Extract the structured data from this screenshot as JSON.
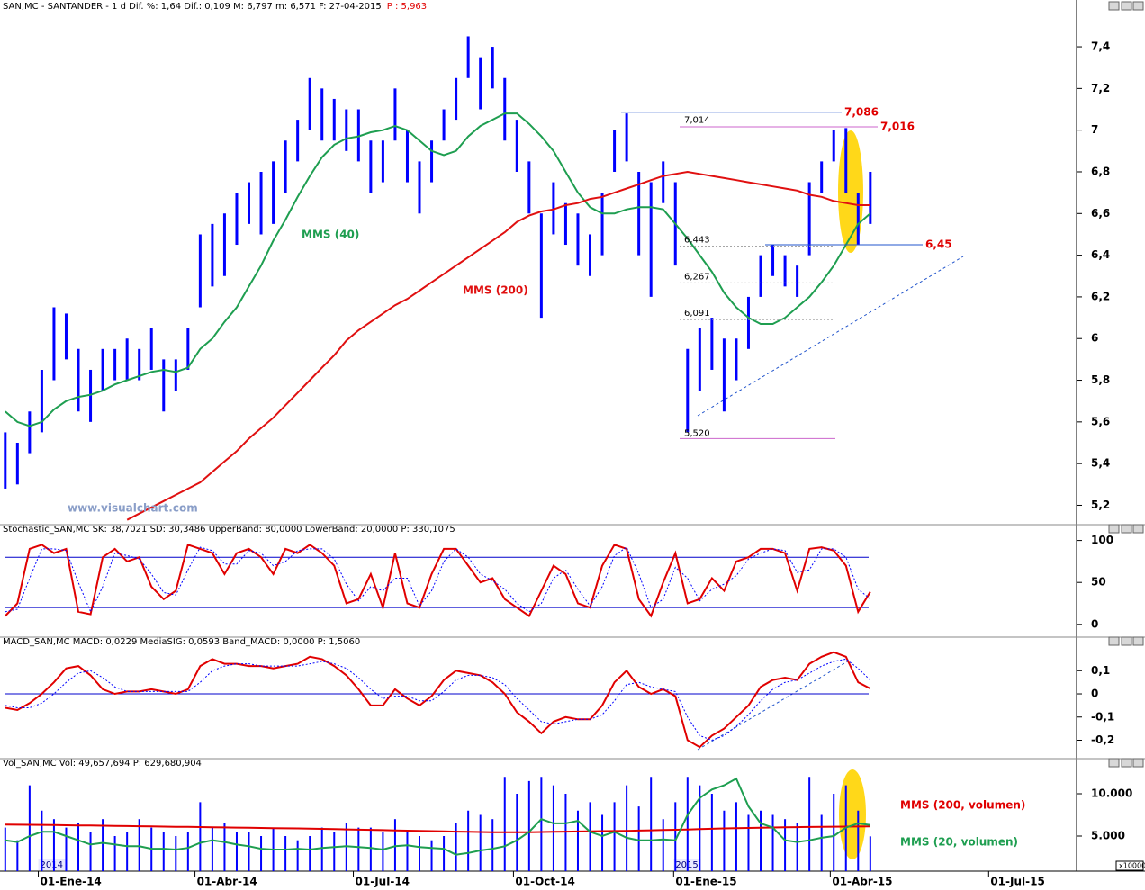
{
  "chart_data": [
    {
      "type": "ohlc",
      "title": "SAN,MC - SANTANDER -  1 d Dif. %: 1,64 Dif.: 0,109 M: 6,797 m: 6,571 F: 27-04-2015",
      "title_tail": "P : 5,963",
      "watermark": "www.visualchart.com",
      "x": [
        "2013-12-13",
        "2013-12-20",
        "2013-12-27",
        "2014-01-03",
        "2014-01-10",
        "2014-01-17",
        "2014-01-24",
        "2014-01-31",
        "2014-02-07",
        "2014-02-14",
        "2014-02-21",
        "2014-02-28",
        "2014-03-07",
        "2014-03-14",
        "2014-03-21",
        "2014-03-28",
        "2014-04-04",
        "2014-04-11",
        "2014-04-18",
        "2014-04-25",
        "2014-05-02",
        "2014-05-09",
        "2014-05-16",
        "2014-05-23",
        "2014-05-30",
        "2014-06-06",
        "2014-06-13",
        "2014-06-20",
        "2014-06-27",
        "2014-07-04",
        "2014-07-11",
        "2014-07-18",
        "2014-07-25",
        "2014-08-01",
        "2014-08-08",
        "2014-08-15",
        "2014-08-22",
        "2014-08-29",
        "2014-09-05",
        "2014-09-12",
        "2014-09-19",
        "2014-09-26",
        "2014-10-03",
        "2014-10-10",
        "2014-10-17",
        "2014-10-24",
        "2014-10-31",
        "2014-11-07",
        "2014-11-14",
        "2014-11-21",
        "2014-11-28",
        "2014-12-05",
        "2014-12-12",
        "2014-12-19",
        "2014-12-26",
        "2015-01-02",
        "2015-01-09",
        "2015-01-16",
        "2015-01-23",
        "2015-01-30",
        "2015-02-06",
        "2015-02-13",
        "2015-02-20",
        "2015-02-27",
        "2015-03-06",
        "2015-03-13",
        "2015-03-20",
        "2015-03-27",
        "2015-04-03",
        "2015-04-10",
        "2015-04-17",
        "2015-04-24"
      ],
      "xlim": [
        "2013-12-10",
        "2015-08-20"
      ],
      "xticks": [
        {
          "value": "2014-01-01",
          "label": "01-Ene-14"
        },
        {
          "value": "2014-04-01",
          "label": "01-Abr-14"
        },
        {
          "value": "2014-07-01",
          "label": "01-Jul-14"
        },
        {
          "value": "2014-10-01",
          "label": "01-Oct-14"
        },
        {
          "value": "2015-01-01",
          "label": "01-Ene-15"
        },
        {
          "value": "2015-04-01",
          "label": "01-Abr-15"
        },
        {
          "value": "2015-07-01",
          "label": "01-Jul-15"
        }
      ],
      "year_labels": [
        {
          "value": "2014-01-01",
          "label": "2014"
        },
        {
          "value": "2015-01-01",
          "label": "2015"
        }
      ],
      "color": "#0000ff",
      "high": [
        5.55,
        5.5,
        5.65,
        5.85,
        6.15,
        6.12,
        5.95,
        5.85,
        5.95,
        5.95,
        6.0,
        5.95,
        6.05,
        5.9,
        5.9,
        6.05,
        6.5,
        6.55,
        6.6,
        6.7,
        6.75,
        6.8,
        6.85,
        6.95,
        7.05,
        7.25,
        7.2,
        7.15,
        7.1,
        7.1,
        6.95,
        6.95,
        7.2,
        7.0,
        6.85,
        6.95,
        7.1,
        7.25,
        7.45,
        7.35,
        7.4,
        7.25,
        7.05,
        6.85,
        6.6,
        6.75,
        6.65,
        6.6,
        6.5,
        6.7,
        7.0,
        7.08,
        6.8,
        6.75,
        6.85,
        6.75,
        5.95,
        6.05,
        6.1,
        6.0,
        6.0,
        6.2,
        6.4,
        6.45,
        6.4,
        6.35,
        6.75,
        6.85,
        7.0,
        7.01,
        6.7,
        6.8
      ],
      "low": [
        5.28,
        5.3,
        5.45,
        5.55,
        5.8,
        5.9,
        5.65,
        5.6,
        5.75,
        5.8,
        5.8,
        5.8,
        5.85,
        5.65,
        5.75,
        5.85,
        6.15,
        6.25,
        6.3,
        6.45,
        6.55,
        6.5,
        6.55,
        6.7,
        6.85,
        7.0,
        6.95,
        6.95,
        6.9,
        6.85,
        6.7,
        6.75,
        6.95,
        6.75,
        6.6,
        6.75,
        6.95,
        7.05,
        7.25,
        7.1,
        7.2,
        6.95,
        6.8,
        6.6,
        6.1,
        6.5,
        6.45,
        6.35,
        6.3,
        6.4,
        6.8,
        6.85,
        6.4,
        6.2,
        6.65,
        6.35,
        5.55,
        5.75,
        5.85,
        5.65,
        5.8,
        5.95,
        6.2,
        6.3,
        6.25,
        6.2,
        6.4,
        6.7,
        6.85,
        6.7,
        6.45,
        6.55
      ],
      "ylim": [
        5.12,
        7.56
      ],
      "yticks": [
        {
          "value": 5.2,
          "label": "5,2"
        },
        {
          "value": 5.4,
          "label": "5,4"
        },
        {
          "value": 5.6,
          "label": "5,6"
        },
        {
          "value": 5.8,
          "label": "5,8"
        },
        6,
        {
          "value": 6.2,
          "label": "6,2"
        },
        {
          "value": 6.4,
          "label": "6,4"
        },
        {
          "value": 6.6,
          "label": "6,6"
        },
        {
          "value": 6.8,
          "label": "6,8"
        },
        7,
        {
          "value": 7.2,
          "label": "7,2"
        },
        {
          "value": 7.4,
          "label": "7,4"
        }
      ],
      "series": [
        {
          "name": "MMS (40)",
          "color": "#1e9e50",
          "values": [
            5.65,
            5.6,
            5.58,
            5.6,
            5.66,
            5.7,
            5.72,
            5.73,
            5.75,
            5.78,
            5.8,
            5.82,
            5.84,
            5.85,
            5.84,
            5.86,
            5.95,
            6.0,
            6.08,
            6.15,
            6.25,
            6.35,
            6.47,
            6.57,
            6.68,
            6.78,
            6.87,
            6.93,
            6.96,
            6.97,
            6.99,
            7.0,
            7.02,
            7.0,
            6.95,
            6.9,
            6.88,
            6.9,
            6.97,
            7.02,
            7.05,
            7.08,
            7.08,
            7.03,
            6.97,
            6.9,
            6.8,
            6.7,
            6.63,
            6.6,
            6.6,
            6.62,
            6.63,
            6.63,
            6.62,
            6.55,
            6.48,
            6.4,
            6.32,
            6.22,
            6.15,
            6.1,
            6.07,
            6.07,
            6.1,
            6.15,
            6.2,
            6.27,
            6.35,
            6.45,
            6.55,
            6.6
          ]
        },
        {
          "name": "MMS (200)",
          "color": "#e01010",
          "values": [
            null,
            null,
            null,
            null,
            null,
            null,
            null,
            null,
            null,
            null,
            5.13,
            5.16,
            5.19,
            5.22,
            5.25,
            5.28,
            5.31,
            5.36,
            5.41,
            5.46,
            5.52,
            5.57,
            5.62,
            5.68,
            5.74,
            5.8,
            5.86,
            5.92,
            5.99,
            6.04,
            6.08,
            6.12,
            6.16,
            6.19,
            6.23,
            6.27,
            6.31,
            6.35,
            6.39,
            6.43,
            6.47,
            6.51,
            6.56,
            6.59,
            6.61,
            6.62,
            6.64,
            6.65,
            6.67,
            6.68,
            6.7,
            6.72,
            6.74,
            6.76,
            6.78,
            6.79,
            6.8,
            6.79,
            6.78,
            6.77,
            6.76,
            6.75,
            6.74,
            6.73,
            6.72,
            6.71,
            6.69,
            6.68,
            6.66,
            6.65,
            6.64,
            6.64
          ]
        }
      ],
      "levels": [
        {
          "value": 7.086,
          "label": "7,086",
          "color": "#e00000"
        },
        {
          "value": 7.016,
          "label": "7,016",
          "color": "#e00000"
        },
        {
          "value": 6.45,
          "label": "6,45",
          "color": "#e00000"
        },
        {
          "value": 7.014,
          "label": "7,014",
          "color": "#000000"
        },
        {
          "value": 6.443,
          "label": "6,443",
          "color": "#000000"
        },
        {
          "value": 6.267,
          "label": "6,267",
          "color": "#000000"
        },
        {
          "value": 6.091,
          "label": "6,091",
          "color": "#000000"
        },
        {
          "value": 5.52,
          "label": "5,520",
          "color": "#000000"
        }
      ]
    },
    {
      "type": "line",
      "title": "Stochastic_SAN,MC SK: 38,7021 SD: 30,3486 UpperBand: 80,0000 LowerBand: 20,0000 P: 330,1075",
      "ylim": [
        -12,
        106
      ],
      "yticks": [
        0,
        50,
        100
      ],
      "bands": [
        80,
        20
      ],
      "band_color": "#0000cc",
      "series": [
        {
          "name": "SK",
          "color": "#e00000",
          "dash": false,
          "values": [
            10,
            25,
            90,
            95,
            85,
            90,
            15,
            12,
            80,
            90,
            75,
            80,
            45,
            30,
            40,
            95,
            90,
            85,
            60,
            85,
            90,
            80,
            60,
            90,
            85,
            95,
            85,
            70,
            25,
            30,
            60,
            20,
            85,
            25,
            20,
            60,
            90,
            90,
            70,
            50,
            55,
            30,
            20,
            10,
            40,
            70,
            60,
            25,
            20,
            70,
            95,
            90,
            30,
            10,
            50,
            85,
            25,
            30,
            55,
            40,
            75,
            80,
            90,
            90,
            85,
            40,
            90,
            92,
            88,
            70,
            15,
            38.7021
          ]
        },
        {
          "name": "SD",
          "color": "#0000ff",
          "dash": true,
          "values": [
            15,
            18,
            55,
            90,
            90,
            88,
            50,
            15,
            45,
            85,
            82,
            78,
            60,
            38,
            35,
            65,
            92,
            88,
            72,
            72,
            88,
            85,
            70,
            75,
            88,
            90,
            90,
            78,
            48,
            28,
            45,
            40,
            55,
            55,
            22,
            40,
            75,
            90,
            80,
            60,
            52,
            42,
            25,
            15,
            25,
            55,
            65,
            42,
            22,
            45,
            82,
            92,
            60,
            20,
            30,
            68,
            55,
            28,
            42,
            48,
            58,
            78,
            85,
            90,
            88,
            62,
            65,
            90,
            90,
            80,
            42,
            30.3486
          ]
        }
      ]
    },
    {
      "type": "line",
      "title": "MACD_SAN,MC MACD: 0,0229 MediaSIG: 0,0593 Band_MACD: 0,0000 P: 1,5060",
      "ylim": [
        -0.268,
        0.206
      ],
      "yticks": [
        {
          "value": -0.2,
          "label": "-0,2"
        },
        {
          "value": -0.1,
          "label": "-0,1"
        },
        0,
        {
          "value": 0.1,
          "label": "0,1"
        }
      ],
      "bands": [
        0
      ],
      "band_color": "#0000cc",
      "series": [
        {
          "name": "MACD",
          "color": "#e00000",
          "dash": false,
          "values": [
            -0.06,
            -0.07,
            -0.04,
            0.0,
            0.05,
            0.11,
            0.12,
            0.08,
            0.02,
            0.0,
            0.01,
            0.01,
            0.02,
            0.01,
            0.0,
            0.02,
            0.12,
            0.15,
            0.13,
            0.13,
            0.12,
            0.12,
            0.11,
            0.12,
            0.13,
            0.16,
            0.15,
            0.12,
            0.08,
            0.02,
            -0.05,
            -0.05,
            0.02,
            -0.02,
            -0.05,
            -0.01,
            0.06,
            0.1,
            0.09,
            0.08,
            0.05,
            0.0,
            -0.08,
            -0.12,
            -0.17,
            -0.12,
            -0.1,
            -0.11,
            -0.11,
            -0.05,
            0.05,
            0.1,
            0.03,
            0.0,
            0.02,
            -0.01,
            -0.2,
            -0.23,
            -0.18,
            -0.15,
            -0.1,
            -0.05,
            0.03,
            0.06,
            0.07,
            0.06,
            0.13,
            0.16,
            0.18,
            0.16,
            0.05,
            0.0229
          ]
        },
        {
          "name": "MediaSIG",
          "color": "#0000ff",
          "dash": true,
          "values": [
            -0.05,
            -0.06,
            -0.06,
            -0.04,
            0.0,
            0.05,
            0.09,
            0.1,
            0.07,
            0.03,
            0.01,
            0.01,
            0.01,
            0.01,
            0.01,
            0.01,
            0.05,
            0.1,
            0.12,
            0.13,
            0.13,
            0.12,
            0.12,
            0.12,
            0.12,
            0.13,
            0.14,
            0.13,
            0.11,
            0.07,
            0.02,
            -0.02,
            -0.01,
            -0.01,
            -0.03,
            -0.03,
            0.01,
            0.06,
            0.08,
            0.08,
            0.07,
            0.04,
            -0.02,
            -0.07,
            -0.12,
            -0.13,
            -0.12,
            -0.11,
            -0.11,
            -0.09,
            -0.03,
            0.04,
            0.05,
            0.03,
            0.02,
            0.01,
            -0.1,
            -0.18,
            -0.2,
            -0.18,
            -0.14,
            -0.09,
            -0.03,
            0.02,
            0.05,
            0.06,
            0.09,
            0.12,
            0.14,
            0.15,
            0.11,
            0.0593
          ]
        }
      ]
    },
    {
      "type": "bar",
      "title": "Vol_SAN,MC Vol: 49,657,694 P: 629,680,904",
      "unit_label": "x10000",
      "ylim": [
        851,
        12872
      ],
      "yticks": [
        {
          "value": 5000,
          "label": "5.000"
        },
        {
          "value": 10000,
          "label": "10.000"
        }
      ],
      "color": "#0000ff",
      "values": [
        6000,
        4500,
        11000,
        8000,
        7000,
        6000,
        6500,
        5500,
        7000,
        5000,
        5500,
        7000,
        6000,
        5500,
        5000,
        5500,
        9000,
        6000,
        6500,
        5500,
        5500,
        5000,
        6000,
        5000,
        4500,
        5000,
        6000,
        5500,
        6500,
        6000,
        6000,
        5500,
        7000,
        5500,
        5000,
        4500,
        5000,
        6500,
        8000,
        7500,
        7000,
        12000,
        10000,
        11500,
        12000,
        11000,
        10000,
        8000,
        9000,
        7500,
        9000,
        11000,
        8500,
        12000,
        7000,
        9000,
        12000,
        11000,
        10000,
        8000,
        9000,
        7500,
        8000,
        7500,
        7000,
        6500,
        12000,
        7500,
        10000,
        11000,
        8000,
        4965.7694
      ],
      "series": [
        {
          "name": "MMS (200, volumen)",
          "color": "#e00000",
          "dash": false,
          "values": [
            6350,
            6340,
            6330,
            6320,
            6300,
            6280,
            6260,
            6240,
            6220,
            6200,
            6180,
            6160,
            6140,
            6120,
            6100,
            6080,
            6060,
            6040,
            6020,
            6000,
            5980,
            5960,
            5940,
            5920,
            5900,
            5880,
            5850,
            5820,
            5790,
            5760,
            5730,
            5700,
            5670,
            5640,
            5610,
            5580,
            5550,
            5520,
            5500,
            5480,
            5460,
            5450,
            5450,
            5460,
            5480,
            5500,
            5520,
            5540,
            5560,
            5580,
            5600,
            5620,
            5650,
            5680,
            5710,
            5740,
            5780,
            5820,
            5860,
            5900,
            5930,
            5960,
            5990,
            6010,
            6030,
            6050,
            6070,
            6090,
            6110,
            6120,
            6130,
            6140
          ]
        },
        {
          "name": "MMS (20, volumen)",
          "color": "#1e9e50",
          "dash": false,
          "values": [
            4500,
            4300,
            5000,
            5500,
            5500,
            5000,
            4500,
            4000,
            4200,
            4000,
            3800,
            3800,
            3500,
            3500,
            3400,
            3600,
            4200,
            4500,
            4300,
            4000,
            3800,
            3500,
            3400,
            3400,
            3500,
            3400,
            3600,
            3700,
            3800,
            3700,
            3600,
            3400,
            3800,
            3900,
            3700,
            3600,
            3500,
            2800,
            3000,
            3300,
            3500,
            3800,
            4500,
            5500,
            7000,
            6500,
            6500,
            6800,
            5500,
            5000,
            5500,
            4800,
            4500,
            4500,
            4600,
            4500,
            7500,
            9500,
            10500,
            11000,
            11800,
            8500,
            6500,
            6000,
            4500,
            4300,
            4500,
            4800,
            5000,
            6000,
            6500,
            6300
          ]
        }
      ]
    }
  ]
}
